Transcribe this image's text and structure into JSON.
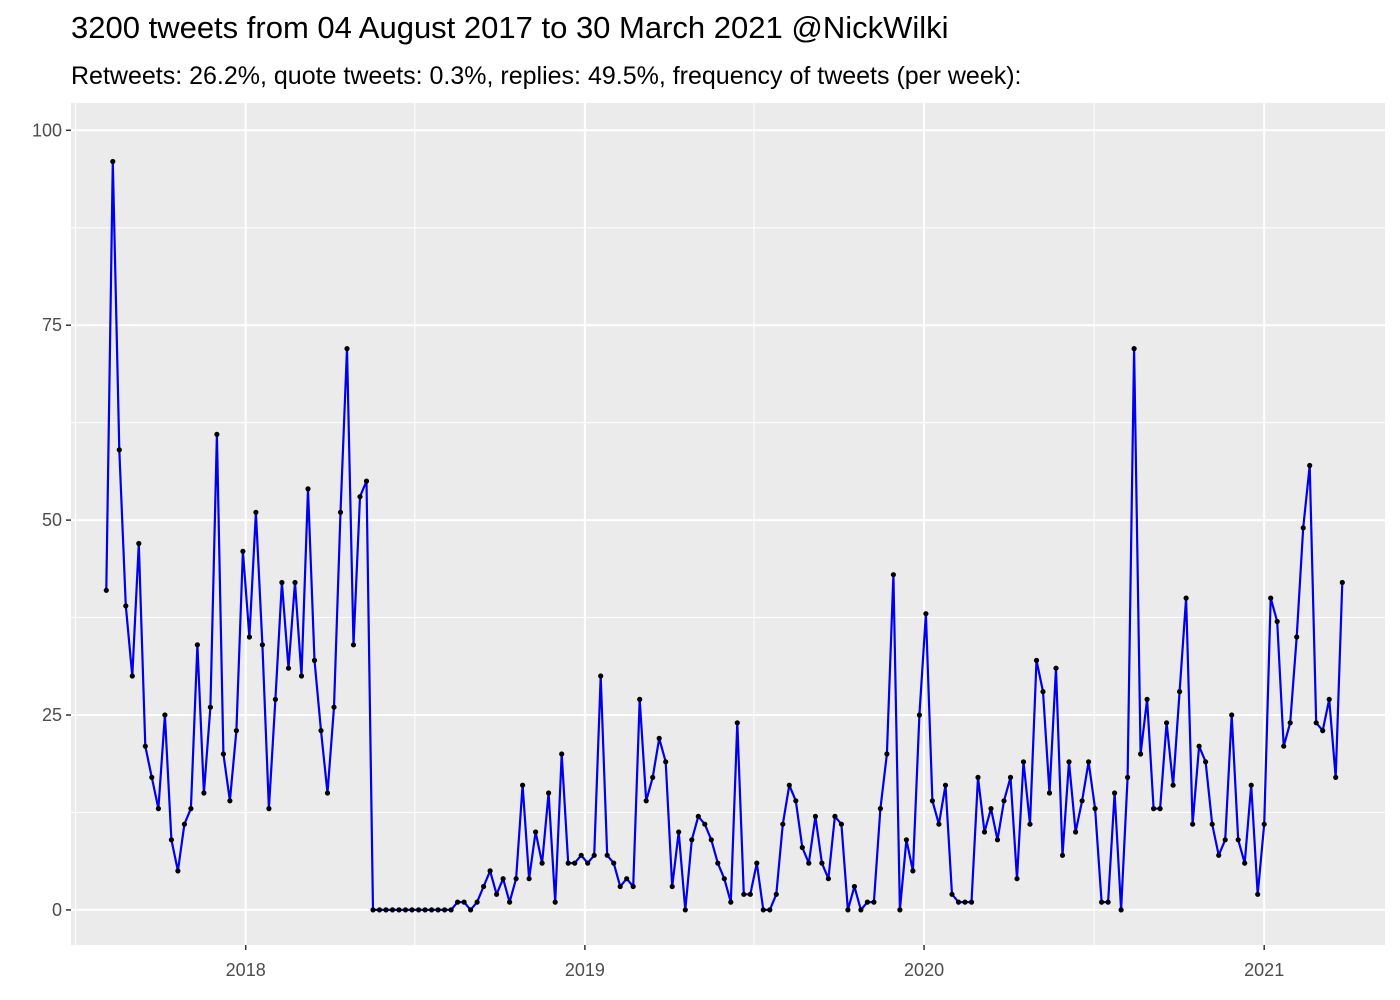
{
  "chart_data": {
    "type": "line",
    "title": "3200 tweets from 04 August 2017 to 30 March 2021 @NickWilki",
    "subtitle": "Retweets: 26.2%, quote tweets: 0.3%, replies: 49.5%, frequency of tweets (per week):",
    "xlabel": "",
    "ylabel": "",
    "ylim": [
      -4.5,
      103.5
    ],
    "xlim": [
      "2017-06-27",
      "2021-05-11"
    ],
    "yticks": [
      0,
      25,
      50,
      75,
      100
    ],
    "xticks": [
      "2018",
      "2019",
      "2020",
      "2021"
    ],
    "grid": true,
    "line_color": "#0000ee",
    "point_color": "#000000",
    "panel_color": "#ebebeb",
    "x_start": "2017-08-04",
    "x_step_days": 7,
    "values": [
      41,
      96,
      59,
      39,
      30,
      47,
      21,
      17,
      13,
      25,
      9,
      5,
      11,
      13,
      34,
      15,
      26,
      61,
      20,
      14,
      23,
      46,
      35,
      51,
      34,
      13,
      27,
      42,
      31,
      42,
      30,
      54,
      32,
      23,
      15,
      26,
      51,
      72,
      34,
      53,
      55,
      0,
      0,
      0,
      0,
      0,
      0,
      0,
      0,
      0,
      0,
      0,
      0,
      0,
      1,
      1,
      0,
      1,
      3,
      5,
      2,
      4,
      1,
      4,
      16,
      4,
      10,
      6,
      15,
      1,
      20,
      6,
      6,
      7,
      6,
      7,
      30,
      7,
      6,
      3,
      4,
      3,
      27,
      14,
      17,
      22,
      19,
      3,
      10,
      0,
      9,
      12,
      11,
      9,
      6,
      4,
      1,
      24,
      2,
      2,
      6,
      0,
      0,
      2,
      11,
      16,
      14,
      8,
      6,
      12,
      6,
      4,
      12,
      11,
      0,
      3,
      0,
      1,
      1,
      13,
      20,
      43,
      0,
      9,
      5,
      25,
      38,
      14,
      11,
      16,
      2,
      1,
      1,
      1,
      17,
      10,
      13,
      9,
      14,
      17,
      4,
      19,
      11,
      32,
      28,
      15,
      31,
      7,
      19,
      10,
      14,
      19,
      13,
      1,
      1,
      15,
      0,
      17,
      72,
      20,
      27,
      13,
      13,
      24,
      16,
      28,
      40,
      11,
      21,
      19,
      11,
      7,
      9,
      25,
      9,
      6,
      16,
      2,
      11,
      40,
      37,
      21,
      24,
      35,
      49,
      57,
      24,
      23,
      27,
      17,
      42
    ]
  }
}
